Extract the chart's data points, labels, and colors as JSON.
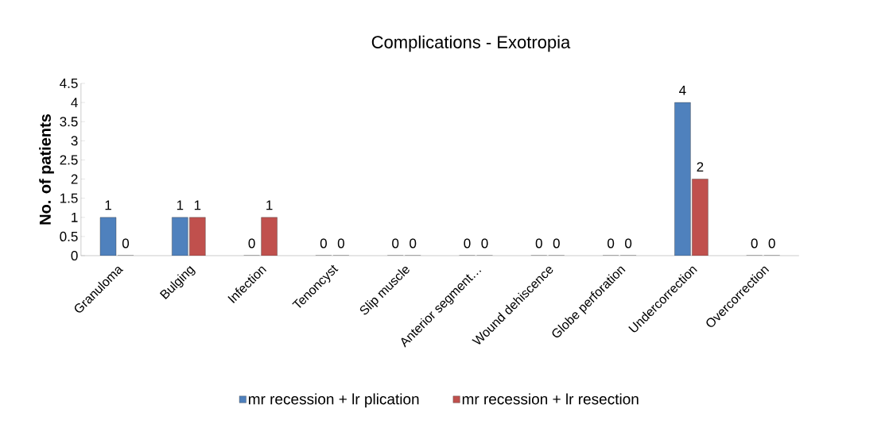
{
  "chart_data": {
    "type": "bar",
    "title": "Complications - Exotropia",
    "ylabel": "No. of patients",
    "categories": [
      "Granuloma",
      "Bulging",
      "Infection",
      "Tenoncyst",
      "Slip muscle",
      "Anterior segment…",
      "Wound dehiscence",
      "Globe perforation",
      "Undercorrection",
      "Overcorrection"
    ],
    "series": [
      {
        "name": "mr recession + lr plication",
        "color": "#4f81bd",
        "values": [
          1,
          1,
          0,
          0,
          0,
          0,
          0,
          0,
          4,
          0
        ]
      },
      {
        "name": "mr recession + lr resection",
        "color": "#c0504d",
        "values": [
          0,
          1,
          1,
          0,
          0,
          0,
          0,
          0,
          2,
          0
        ]
      }
    ],
    "ylim": [
      0,
      4.5
    ],
    "yticks": [
      0,
      0.5,
      1,
      1.5,
      2,
      2.5,
      3,
      3.5,
      4,
      4.5
    ],
    "data_labels": true,
    "legend": "bottom",
    "grid": false
  }
}
